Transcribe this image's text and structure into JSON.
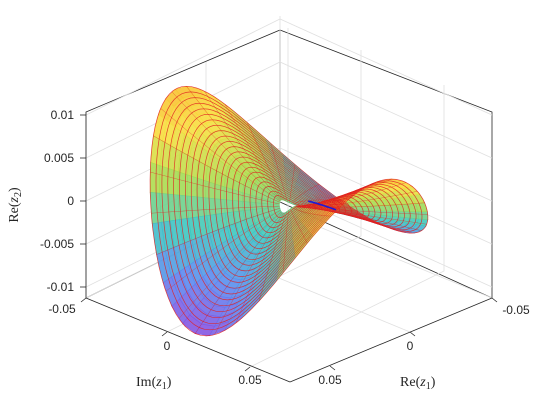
{
  "chart_data": {
    "type": "surface3d",
    "title": "",
    "xlabel_prefix": "Re",
    "xlabel_sub": "1",
    "ylabel_prefix": "Im",
    "ylabel_sub": "1",
    "zlabel_prefix": "Re",
    "zlabel_sub": "2",
    "xlabel": "Re(z1)",
    "ylabel": "Im(z1)",
    "zlabel": "Re(z2)",
    "xlim": [
      -0.06,
      0.06
    ],
    "ylim": [
      -0.06,
      0.06
    ],
    "zlim": [
      -0.01,
      0.01
    ],
    "x_ticks": [
      "-0.05",
      "0.05"
    ],
    "y_ticks": [
      "-0.05",
      "0",
      "0.05"
    ],
    "z_ticks": [
      "0.01",
      "0.005",
      "0",
      "-0.005",
      "-0.01"
    ],
    "grid": true,
    "legend": "none",
    "surface_colormap": [
      "#8a4fe0",
      "#5a8cf0",
      "#3cc8c0",
      "#a8dc50",
      "#f8e040",
      "#f8b028"
    ],
    "contour_color": "#e02020",
    "highlight_curve_color": "#1a1ad8"
  }
}
